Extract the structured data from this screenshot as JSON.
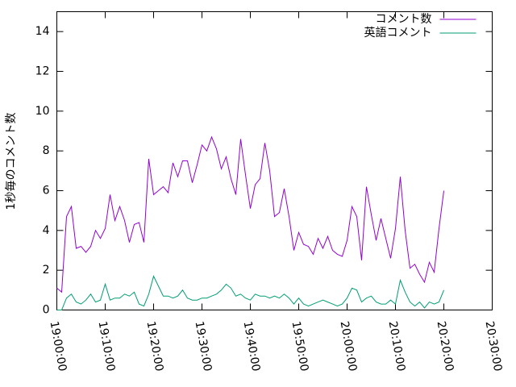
{
  "chart_data": {
    "type": "line",
    "ylabel": "1秒毎のコメント数",
    "x": [
      "19:00:00",
      "19:01:00",
      "19:02:00",
      "19:03:00",
      "19:04:00",
      "19:05:00",
      "19:06:00",
      "19:07:00",
      "19:08:00",
      "19:09:00",
      "19:10:00",
      "19:11:00",
      "19:12:00",
      "19:13:00",
      "19:14:00",
      "19:15:00",
      "19:16:00",
      "19:17:00",
      "19:18:00",
      "19:19:00",
      "19:20:00",
      "19:21:00",
      "19:22:00",
      "19:23:00",
      "19:24:00",
      "19:25:00",
      "19:26:00",
      "19:27:00",
      "19:28:00",
      "19:29:00",
      "19:30:00",
      "19:31:00",
      "19:32:00",
      "19:33:00",
      "19:34:00",
      "19:35:00",
      "19:36:00",
      "19:37:00",
      "19:38:00",
      "19:39:00",
      "19:40:00",
      "19:41:00",
      "19:42:00",
      "19:43:00",
      "19:44:00",
      "19:45:00",
      "19:46:00",
      "19:47:00",
      "19:48:00",
      "19:49:00",
      "19:50:00",
      "19:51:00",
      "19:52:00",
      "19:53:00",
      "19:54:00",
      "19:55:00",
      "19:56:00",
      "19:57:00",
      "19:58:00",
      "19:59:00",
      "20:00:00",
      "20:01:00",
      "20:02:00",
      "20:03:00",
      "20:04:00",
      "20:05:00",
      "20:06:00",
      "20:07:00",
      "20:08:00",
      "20:09:00",
      "20:10:00",
      "20:11:00",
      "20:12:00",
      "20:13:00",
      "20:14:00",
      "20:15:00",
      "20:16:00",
      "20:17:00",
      "20:18:00",
      "20:19:00",
      "20:20:00"
    ],
    "series": [
      {
        "name": "コメント数",
        "color": "#9400d3",
        "values": [
          1.1,
          0.9,
          4.7,
          5.2,
          3.1,
          3.2,
          2.9,
          3.2,
          4.0,
          3.6,
          4.1,
          5.8,
          4.5,
          5.2,
          4.5,
          3.4,
          4.3,
          4.4,
          3.4,
          7.6,
          5.8,
          6.0,
          6.2,
          5.9,
          7.4,
          6.7,
          7.5,
          7.5,
          6.4,
          7.3,
          8.3,
          8.0,
          8.7,
          8.1,
          7.1,
          7.7,
          6.6,
          5.8,
          8.6,
          6.8,
          5.1,
          6.3,
          6.6,
          8.4,
          7.0,
          4.7,
          4.9,
          6.1,
          4.7,
          3.0,
          3.9,
          3.3,
          3.2,
          2.8,
          3.6,
          3.1,
          3.7,
          3.0,
          2.8,
          2.7,
          3.5,
          5.2,
          4.7,
          2.5,
          6.2,
          4.8,
          3.5,
          4.6,
          3.6,
          2.6,
          4.1,
          6.7,
          4.0,
          2.1,
          2.3,
          1.8,
          1.4,
          2.4,
          1.9,
          4.1,
          6.0
        ]
      },
      {
        "name": "英語コメント",
        "color": "#009e73",
        "values": [
          0.0,
          0.0,
          0.6,
          0.8,
          0.4,
          0.3,
          0.5,
          0.8,
          0.4,
          0.5,
          1.3,
          0.5,
          0.6,
          0.6,
          0.8,
          0.7,
          0.9,
          0.3,
          0.2,
          0.8,
          1.7,
          1.2,
          0.7,
          0.7,
          0.6,
          0.7,
          1.0,
          0.6,
          0.5,
          0.5,
          0.6,
          0.6,
          0.7,
          0.8,
          1.0,
          1.3,
          1.1,
          0.7,
          0.8,
          0.6,
          0.5,
          0.8,
          0.7,
          0.7,
          0.6,
          0.7,
          0.6,
          0.8,
          0.6,
          0.3,
          0.6,
          0.3,
          0.2,
          0.3,
          0.4,
          0.5,
          0.4,
          0.3,
          0.2,
          0.3,
          0.6,
          1.1,
          1.0,
          0.4,
          0.6,
          0.7,
          0.4,
          0.3,
          0.3,
          0.5,
          0.3,
          1.5,
          0.9,
          0.4,
          0.2,
          0.4,
          0.1,
          0.4,
          0.3,
          0.4,
          1.0
        ]
      }
    ],
    "xlim": [
      "19:00:00",
      "20:30:00"
    ],
    "xticks": [
      "19:00:00",
      "19:10:00",
      "19:20:00",
      "19:30:00",
      "19:40:00",
      "19:50:00",
      "20:00:00",
      "20:10:00",
      "20:20:00",
      "20:30:00"
    ],
    "ylim": [
      0,
      15
    ],
    "yticks": [
      0,
      2,
      4,
      6,
      8,
      10,
      12,
      14
    ],
    "legend": "top-right"
  }
}
